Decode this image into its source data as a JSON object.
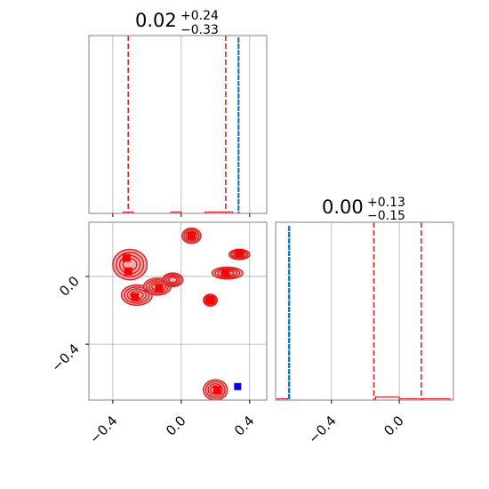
{
  "colors": {
    "samples_a": "#d62728",
    "samples_b": "#1f77b4",
    "contour_fill": "#f4a0a0",
    "contour_line": "#d62728",
    "truth_marker": "#0000ff",
    "grid": "#b0b0b0",
    "axes": "#808080"
  },
  "chart_data": [
    {
      "panel": "marginal-param-1",
      "type": "histogram",
      "title": {
        "value": "0.02",
        "plus": "+0.24",
        "minus": "−0.33"
      },
      "xlim": [
        -0.54,
        0.5
      ],
      "xticks": [
        -0.4,
        0.0,
        0.4
      ],
      "quantile_lines": [
        -0.31,
        0.02,
        0.26
      ],
      "series": [
        {
          "name": "",
          "color": "#1f77b4",
          "peak_x": 0.335,
          "relative_height": 1.0
        },
        {
          "name": "",
          "color": "#d62728",
          "bins": [
            [
              -0.34,
              -0.28
            ],
            [
              -0.06,
              0.0
            ],
            [
              0.14,
              0.3
            ]
          ],
          "relative_height": 0.01
        }
      ],
      "grid": true
    },
    {
      "panel": "joint-param-1-param-2",
      "type": "contour",
      "xlim": [
        -0.54,
        0.5
      ],
      "ylim": [
        -0.73,
        0.32
      ],
      "xticks": [
        -0.4,
        0.0,
        0.4
      ],
      "yticks": [
        -0.4,
        0.0
      ],
      "ytick_labels": [
        "−0.4",
        "0.0"
      ],
      "modes": [
        {
          "x": -0.32,
          "y": 0.11
        },
        {
          "x": -0.31,
          "y": 0.03
        },
        {
          "x": -0.27,
          "y": -0.12
        },
        {
          "x": -0.13,
          "y": -0.07
        },
        {
          "x": 0.06,
          "y": 0.24
        },
        {
          "x": 0.26,
          "y": 0.02
        },
        {
          "x": 0.34,
          "y": 0.14
        },
        {
          "x": 0.17,
          "y": -0.14
        },
        {
          "x": 0.21,
          "y": -0.67
        }
      ],
      "truth_point": {
        "x": 0.33,
        "y": -0.65
      },
      "grid": true
    },
    {
      "panel": "marginal-param-2",
      "type": "histogram",
      "title": {
        "value": "0.00",
        "plus": "+0.13",
        "minus": "−0.15"
      },
      "xlim": [
        -0.73,
        0.32
      ],
      "xticks": [
        -0.4,
        0.0
      ],
      "xtick_labels": [
        "−0.4",
        "0.0"
      ],
      "quantile_lines": [
        -0.15,
        0.0,
        0.13
      ],
      "series": [
        {
          "name": "",
          "color": "#1f77b4",
          "peak_x": -0.65,
          "relative_height": 1.0
        },
        {
          "name": "",
          "color": "#d62728",
          "bins": [
            [
              -0.72,
              -0.66
            ],
            [
              -0.14,
              0.0
            ],
            [
              0.0,
              0.14
            ],
            [
              0.14,
              0.3
            ]
          ],
          "relative_height": 0.01
        }
      ],
      "grid": true
    }
  ],
  "tick_text": {
    "top_x": [
      "−0.4",
      "0.0",
      "0.4"
    ],
    "joint_y": [
      "−0.4",
      "0.0"
    ],
    "joint_x": [
      "−0.4",
      "0.0",
      "0.4"
    ],
    "right_x": [
      "−0.4",
      "0.0"
    ]
  }
}
